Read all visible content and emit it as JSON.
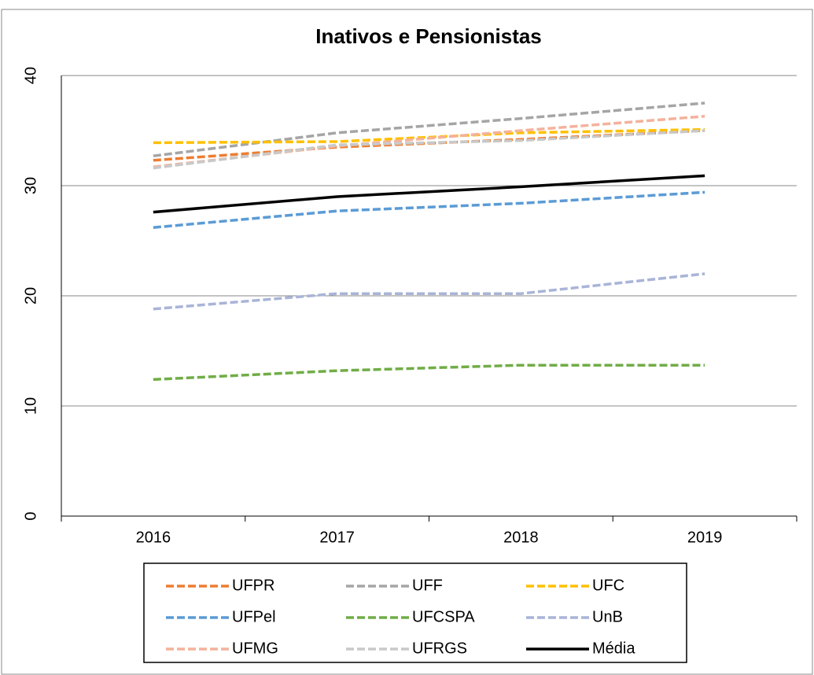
{
  "chart_data": {
    "type": "line",
    "title": "Inativos e Pensionistas",
    "categories": [
      "2016",
      "2017",
      "2018",
      "2019"
    ],
    "ylim": [
      0,
      40
    ],
    "yticks": [
      0,
      10,
      20,
      30,
      40
    ],
    "grid": true,
    "legend": "bottom",
    "series": [
      {
        "name": "UFPR",
        "color": "#ED7D31",
        "dashed": true,
        "values": [
          32.3,
          33.5,
          34.2,
          35.0
        ]
      },
      {
        "name": "UFF",
        "color": "#A5A5A5",
        "dashed": true,
        "values": [
          32.7,
          34.8,
          36.1,
          37.5
        ]
      },
      {
        "name": "UFC",
        "color": "#FFC000",
        "dashed": true,
        "values": [
          33.9,
          34.0,
          34.8,
          35.1
        ]
      },
      {
        "name": "UFPel",
        "color": "#5B9BD5",
        "dashed": true,
        "values": [
          26.2,
          27.7,
          28.4,
          29.4
        ]
      },
      {
        "name": "UFCSPA",
        "color": "#70AD47",
        "dashed": true,
        "values": [
          12.4,
          13.2,
          13.7,
          13.7
        ]
      },
      {
        "name": "UnB",
        "color": "#A9B4D8",
        "dashed": true,
        "values": [
          18.8,
          20.2,
          20.2,
          22.0
        ]
      },
      {
        "name": "UFMG",
        "color": "#F4B29C",
        "dashed": true,
        "values": [
          31.7,
          33.6,
          35.0,
          36.3
        ]
      },
      {
        "name": "UFRGS",
        "color": "#C9C9C9",
        "dashed": true,
        "values": [
          31.6,
          33.7,
          34.1,
          35.0
        ]
      },
      {
        "name": "Média",
        "color": "#000000",
        "dashed": false,
        "values": [
          27.6,
          29.0,
          29.9,
          30.9
        ]
      }
    ]
  }
}
